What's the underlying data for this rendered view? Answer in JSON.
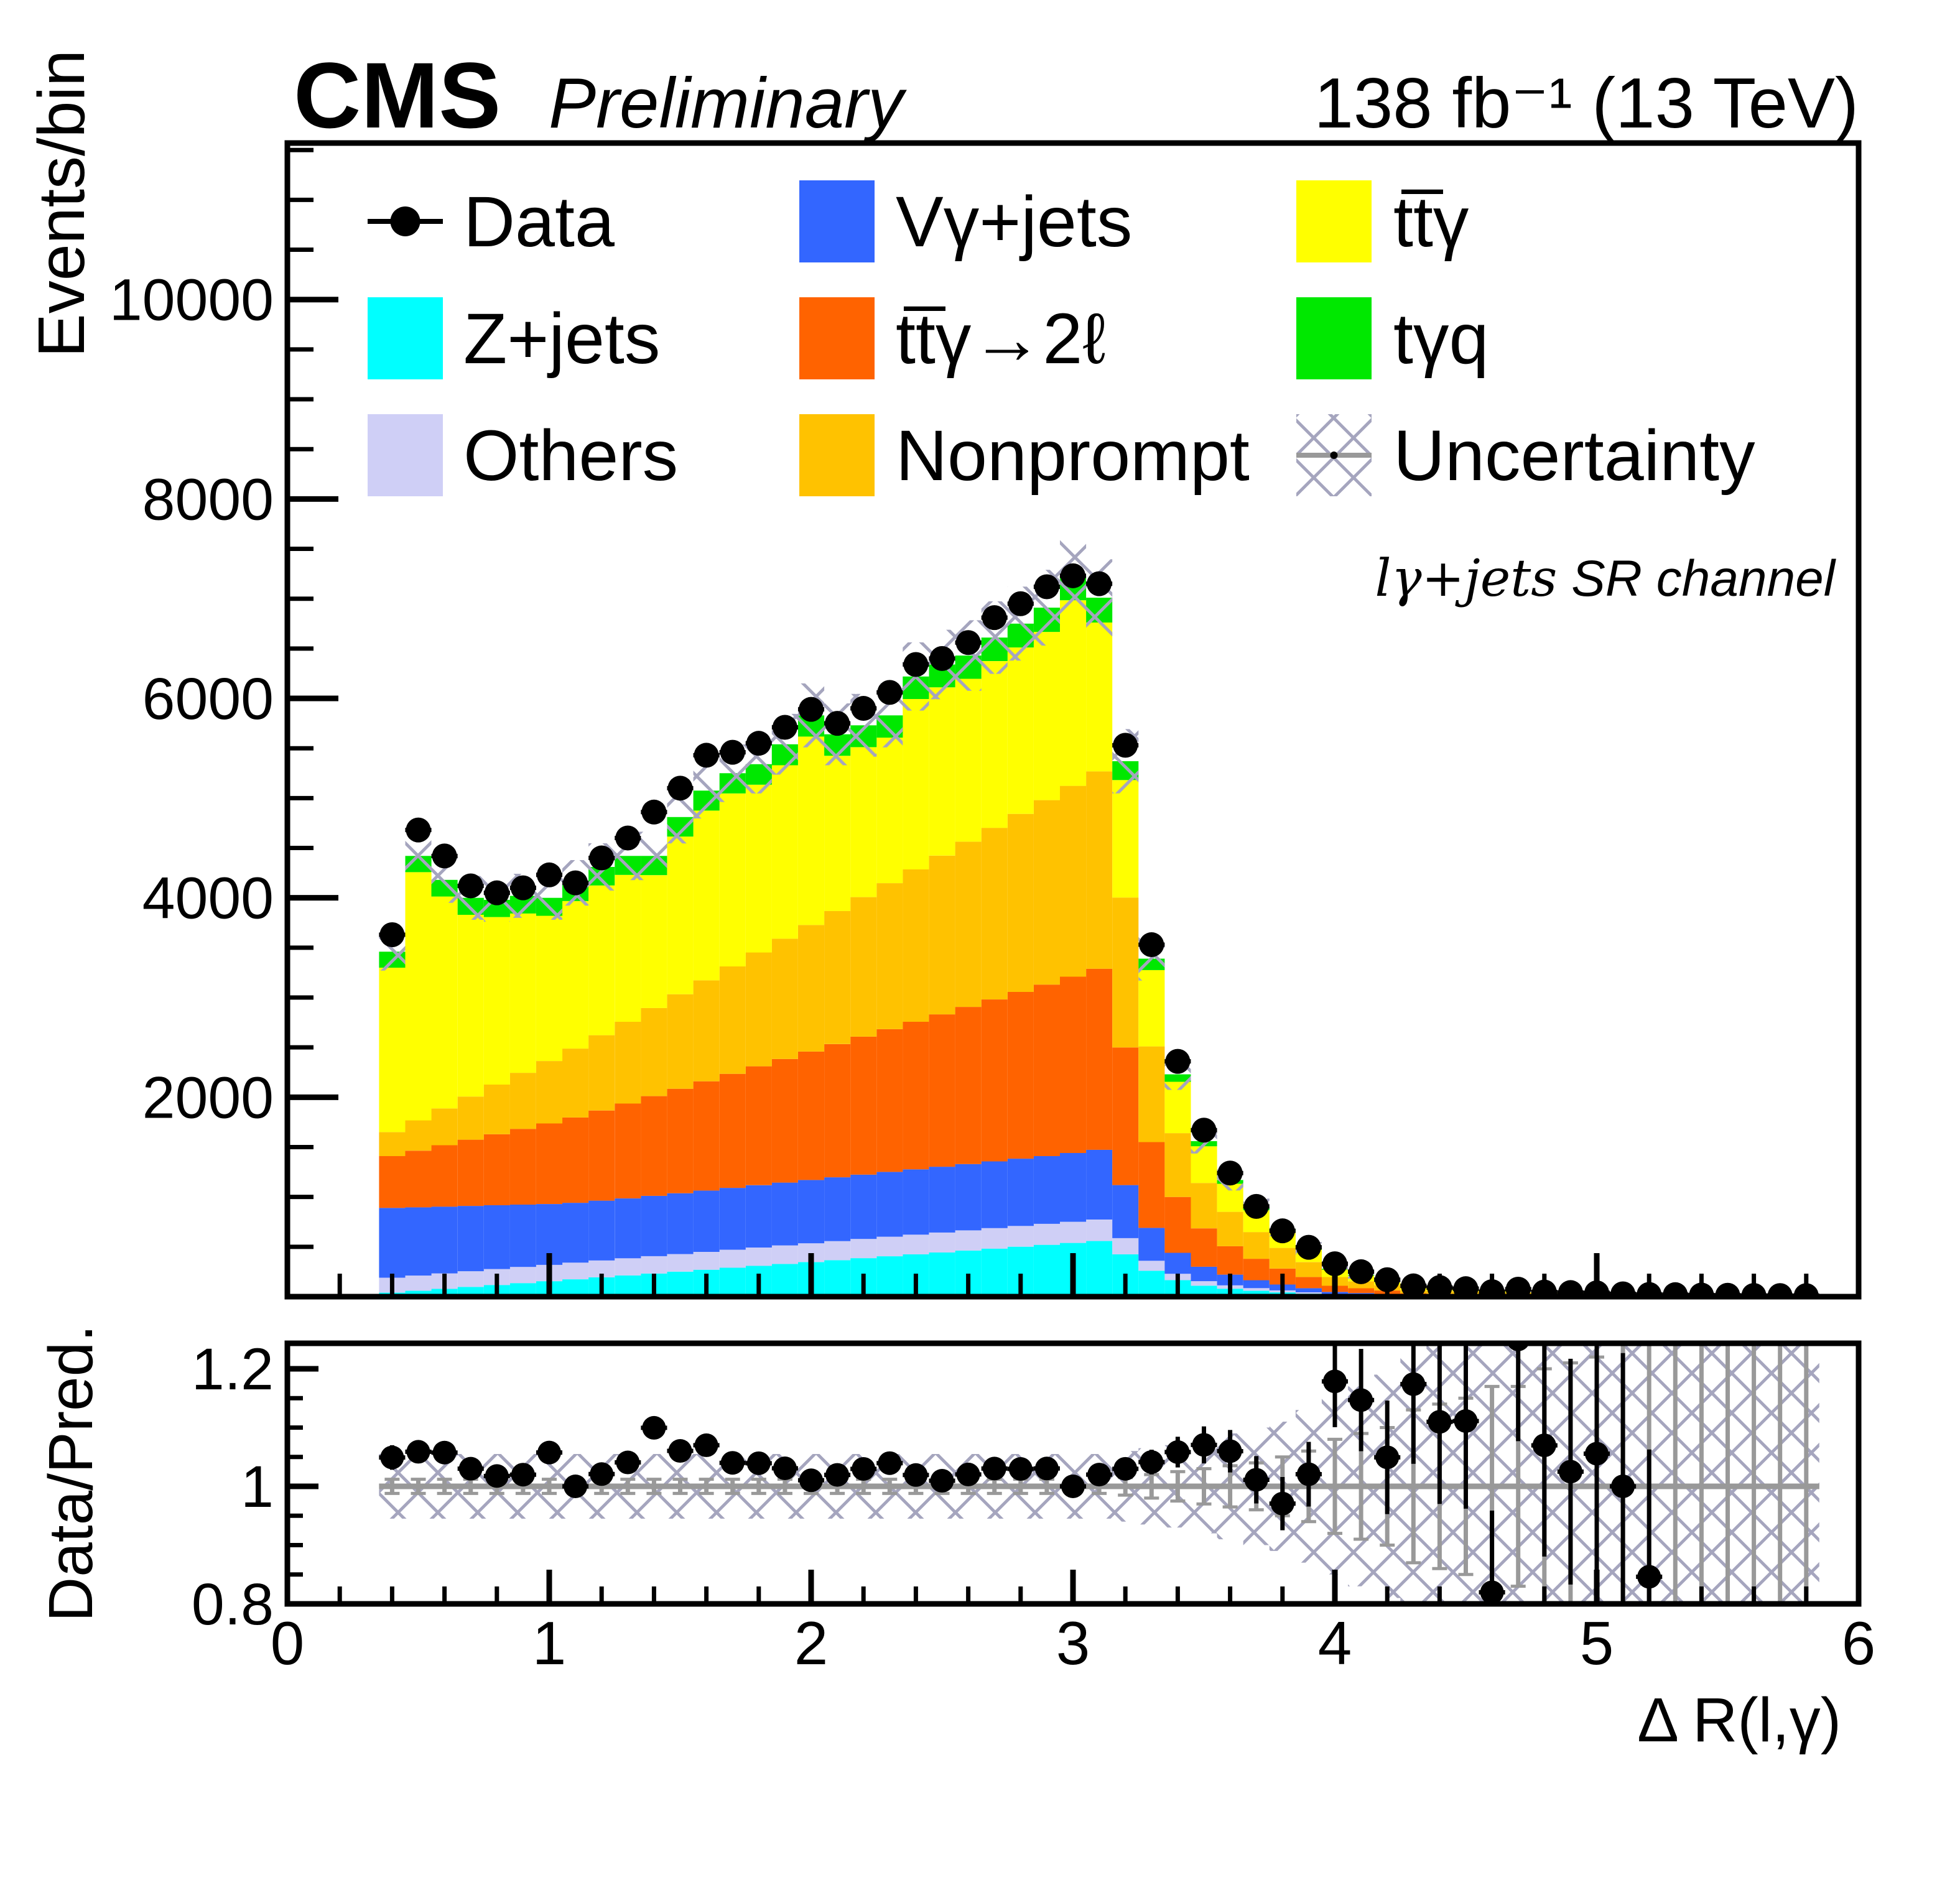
{
  "header": {
    "experiment": "CMS",
    "status": "Preliminary",
    "lumi": "138 fb⁻¹ (13 TeV)"
  },
  "annotation": {
    "channel_math": "lγ+jets",
    "channel_rest": "  SR channel"
  },
  "legend": {
    "items": [
      {
        "label": "Data",
        "swatch": "marker",
        "color": "#000000"
      },
      {
        "label": "Z+jets",
        "swatch": "fill",
        "color": "#00FFFF"
      },
      {
        "label": "Others",
        "swatch": "fill",
        "color": "#CFCFF6"
      },
      {
        "label": "Vγ+jets",
        "swatch": "fill",
        "color": "#3366FF"
      },
      {
        "label": "tt̅γ→2ℓ",
        "swatch": "fill",
        "color": "#FF6300"
      },
      {
        "label": "Nonprompt",
        "swatch": "fill",
        "color": "#FFC200"
      },
      {
        "label": "tt̅γ",
        "swatch": "fill",
        "color": "#FFFF00"
      },
      {
        "label": "tγq",
        "swatch": "fill",
        "color": "#00E800"
      },
      {
        "label": "Uncertainty",
        "swatch": "hatch",
        "color": "#A5A5BE"
      }
    ]
  },
  "chart_data": {
    "type": "bar",
    "subtype": "stacked-histogram-with-ratio",
    "title": "",
    "xlabel": "Δ R(l,γ)",
    "ylabel": "Events/bin",
    "ratio_ylabel": "Data/Pred.",
    "xlim": [
      0,
      6
    ],
    "ylim": [
      0,
      11570
    ],
    "ratio_ylim": [
      0.8,
      1.2434
    ],
    "grid": false,
    "legend_position": "top-inside",
    "bin_start": 0.35,
    "bin_width": 0.1,
    "n_bins": 55,
    "xticks": [
      0,
      1,
      2,
      3,
      4,
      5,
      6
    ],
    "yticks": [
      2000,
      4000,
      6000,
      8000,
      10000
    ],
    "ratio_yticks": {
      "values": [
        0.8,
        1.0,
        1.2
      ],
      "labels": [
        "0.8",
        "1",
        "1.2"
      ]
    },
    "hatch_color": "#A5A5BE",
    "ratio_line_color": "#999999",
    "series": [
      {
        "name": "Z+jets",
        "color": "#00FFFF",
        "values": [
          40,
          59,
          78,
          98,
          117,
          136,
          155,
          174,
          194,
          213,
          232,
          251,
          270,
          290,
          309,
          328,
          347,
          366,
          386,
          405,
          424,
          443,
          462,
          482,
          501,
          520,
          539,
          558,
          424,
          260,
          165,
          110,
          80,
          59,
          43,
          30,
          16,
          12,
          9,
          5,
          4,
          4,
          3,
          3,
          2,
          2,
          2,
          1,
          1,
          1,
          1,
          1,
          0,
          0,
          0
        ]
      },
      {
        "name": "Others",
        "color": "#CFCFF6",
        "values": [
          150,
          152,
          155,
          157,
          160,
          162,
          164,
          167,
          169,
          172,
          174,
          176,
          179,
          181,
          184,
          186,
          188,
          191,
          193,
          196,
          198,
          200,
          203,
          205,
          208,
          210,
          212,
          215,
          163,
          100,
          65,
          45,
          34,
          26,
          20,
          14,
          8,
          6,
          5,
          3,
          3,
          2,
          2,
          2,
          1,
          1,
          1,
          1,
          1,
          1,
          0,
          0,
          0,
          0,
          0
        ]
      },
      {
        "name": "Vγ+jets",
        "color": "#3366FF",
        "values": [
          700,
          685,
          670,
          655,
          640,
          625,
          610,
          600,
          600,
          600,
          605,
          610,
          615,
          620,
          625,
          630,
          635,
          640,
          645,
          650,
          655,
          660,
          665,
          670,
          675,
          680,
          690,
          700,
          532,
          330,
          210,
          145,
          107,
          80,
          59,
          41,
          23,
          18,
          13,
          7,
          6,
          5,
          4,
          4,
          3,
          3,
          2,
          2,
          2,
          1,
          1,
          1,
          1,
          1,
          1
        ]
      },
      {
        "name": "tt̅γ→2ℓ",
        "color": "#FF6300",
        "values": [
          520,
          568,
          616,
          664,
          712,
          760,
          808,
          856,
          904,
          952,
          1000,
          1048,
          1096,
          1144,
          1192,
          1240,
          1288,
          1336,
          1384,
          1432,
          1480,
          1528,
          1576,
          1624,
          1672,
          1720,
          1768,
          1816,
          1380,
          860,
          560,
          385,
          285,
          215,
          160,
          112,
          62,
          48,
          35,
          19,
          17,
          15,
          12,
          12,
          9,
          8,
          7,
          5,
          5,
          4,
          3,
          2,
          2,
          2,
          2
        ]
      },
      {
        "name": "Nonprompt",
        "color": "#FFC200",
        "values": [
          240,
          304,
          369,
          433,
          498,
          562,
          626,
          691,
          755,
          820,
          884,
          948,
          1013,
          1077,
          1142,
          1206,
          1270,
          1335,
          1399,
          1464,
          1528,
          1592,
          1657,
          1721,
          1786,
          1850,
          1914,
          1979,
          1504,
          960,
          640,
          455,
          345,
          268,
          207,
          150,
          88,
          70,
          53,
          31,
          28,
          25,
          21,
          21,
          15,
          14,
          13,
          10,
          9,
          7,
          6,
          5,
          4,
          4,
          3
        ]
      },
      {
        "name": "tt̅γ",
        "color": "#FFFF00",
        "values": [
          1650,
          2489,
          2125,
          1823,
          1680,
          1598,
          1457,
          1479,
          1502,
          1473,
          1332,
          1581,
          1702,
          1735,
          1682,
          1740,
          1889,
          1556,
          1504,
          1460,
          1709,
          1688,
          1634,
          1672,
          1669,
          1687,
          1861,
          1493,
          1178,
          765,
          515,
          368,
          281,
          218,
          169,
          123,
          74,
          57,
          42,
          24,
          21,
          19,
          17,
          16,
          12,
          11,
          10,
          8,
          7,
          5,
          4,
          4,
          4,
          3,
          3
        ]
      },
      {
        "name": "tγq",
        "color": "#00E800",
        "values": [
          160,
          163,
          167,
          170,
          173,
          177,
          180,
          183,
          186,
          190,
          193,
          196,
          200,
          203,
          206,
          210,
          213,
          216,
          219,
          223,
          226,
          229,
          233,
          236,
          239,
          243,
          246,
          249,
          189,
          115,
          75,
          52,
          38,
          29,
          22,
          15,
          9,
          7,
          5,
          3,
          3,
          2,
          2,
          2,
          1,
          1,
          1,
          1,
          1,
          0,
          0,
          0,
          0,
          0,
          0
        ]
      }
    ],
    "data": {
      "name": "Data",
      "values": [
        3630,
        4680,
        4420,
        4120,
        4050,
        4100,
        4230,
        4150,
        4400,
        4600,
        4860,
        5100,
        5430,
        5460,
        5550,
        5710,
        5890,
        5750,
        5900,
        6060,
        6340,
        6400,
        6560,
        6810,
        6950,
        7120,
        7230,
        7150,
        5530,
        3530,
        2360,
        1670,
        1240,
        905,
        660,
        495,
        330,
        250,
        170,
        108,
        91,
        80,
        50,
        75,
        46,
        41,
        38,
        28,
        22,
        20,
        16,
        14,
        12,
        11,
        10
      ]
    },
    "uncertainty_rel": [
      0.055,
      0.055,
      0.055,
      0.055,
      0.055,
      0.055,
      0.055,
      0.055,
      0.055,
      0.055,
      0.055,
      0.055,
      0.055,
      0.055,
      0.055,
      0.055,
      0.055,
      0.055,
      0.055,
      0.055,
      0.055,
      0.055,
      0.055,
      0.055,
      0.055,
      0.055,
      0.055,
      0.055,
      0.06,
      0.065,
      0.07,
      0.08,
      0.09,
      0.1,
      0.11,
      0.13,
      0.15,
      0.17,
      0.19,
      0.22,
      0.24,
      0.26,
      0.26,
      0.26,
      0.26,
      0.26,
      0.26,
      0.26,
      0.26,
      0.26,
      0.26,
      0.26,
      0.26,
      0.26,
      0.26
    ],
    "pred_stat_rel": [
      0.012,
      0.012,
      0.012,
      0.012,
      0.012,
      0.012,
      0.012,
      0.012,
      0.012,
      0.012,
      0.012,
      0.012,
      0.012,
      0.012,
      0.012,
      0.012,
      0.012,
      0.012,
      0.012,
      0.012,
      0.012,
      0.012,
      0.012,
      0.012,
      0.012,
      0.012,
      0.012,
      0.012,
      0.015,
      0.02,
      0.025,
      0.03,
      0.035,
      0.04,
      0.05,
      0.06,
      0.08,
      0.09,
      0.1,
      0.13,
      0.14,
      0.15,
      0.17,
      0.17,
      0.2,
      0.21,
      0.22,
      0.25,
      0.26,
      0.3,
      0.34,
      0.36,
      0.4,
      0.42,
      0.44
    ],
    "ratio_marker_max_x": 5.25
  }
}
